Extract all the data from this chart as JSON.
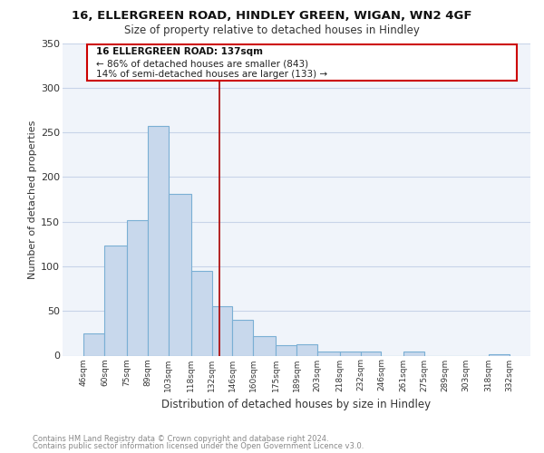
{
  "title": "16, ELLERGREEN ROAD, HINDLEY GREEN, WIGAN, WN2 4GF",
  "subtitle": "Size of property relative to detached houses in Hindley",
  "xlabel": "Distribution of detached houses by size in Hindley",
  "ylabel": "Number of detached properties",
  "bar_edges": [
    46,
    60,
    75,
    89,
    103,
    118,
    132,
    146,
    160,
    175,
    189,
    203,
    218,
    232,
    246,
    261,
    275,
    289,
    303,
    318,
    332
  ],
  "bar_heights": [
    25,
    123,
    152,
    257,
    181,
    95,
    55,
    40,
    22,
    12,
    13,
    5,
    5,
    5,
    0,
    5,
    0,
    0,
    0,
    2
  ],
  "bar_color": "#c8d8ec",
  "bar_edge_color": "#7aafd4",
  "property_line_x": 137,
  "property_line_color": "#aa0000",
  "ylim": [
    0,
    350
  ],
  "yticks": [
    0,
    50,
    100,
    150,
    200,
    250,
    300,
    350
  ],
  "annotation_title": "16 ELLERGREEN ROAD: 137sqm",
  "annotation_line1": "← 86% of detached houses are smaller (843)",
  "annotation_line2": "14% of semi-detached houses are larger (133) →",
  "annotation_box_color": "#ffffff",
  "annotation_box_edge_color": "#cc0000",
  "footer_line1": "Contains HM Land Registry data © Crown copyright and database right 2024.",
  "footer_line2": "Contains public sector information licensed under the Open Government Licence v3.0.",
  "tick_labels": [
    "46sqm",
    "60sqm",
    "75sqm",
    "89sqm",
    "103sqm",
    "118sqm",
    "132sqm",
    "146sqm",
    "160sqm",
    "175sqm",
    "189sqm",
    "203sqm",
    "218sqm",
    "232sqm",
    "246sqm",
    "261sqm",
    "275sqm",
    "289sqm",
    "303sqm",
    "318sqm",
    "332sqm"
  ],
  "background_color": "#f0f4fa",
  "grid_color": "#c8d4e8"
}
